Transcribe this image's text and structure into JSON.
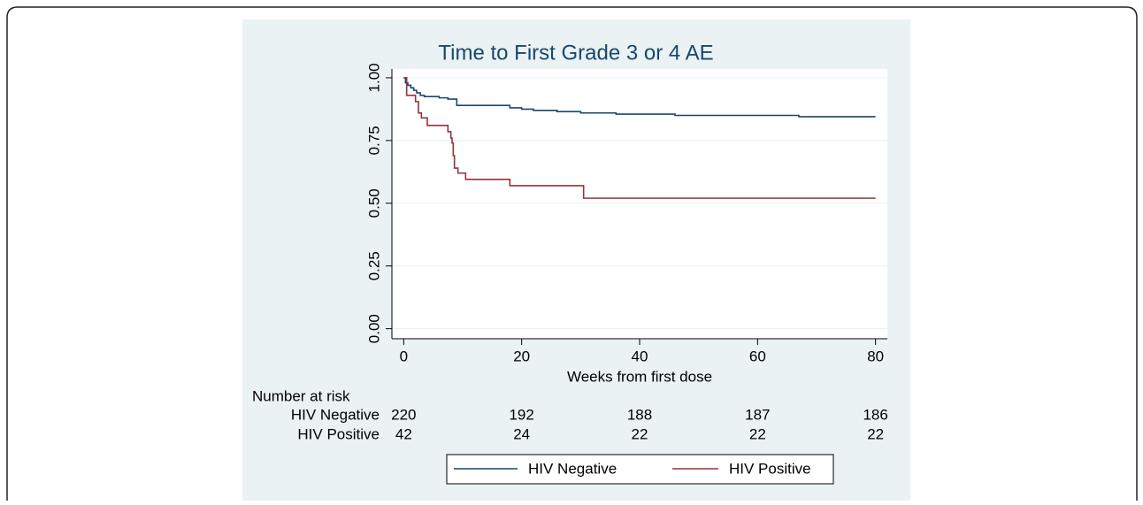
{
  "chart_data": {
    "type": "line",
    "step": "post",
    "title": "Time to First Grade 3 or 4 AE",
    "x_label": "Weeks from first dose",
    "xlim": [
      -2,
      82
    ],
    "xticks": [
      0,
      20,
      40,
      60,
      80
    ],
    "ylim": [
      -0.04,
      1.035
    ],
    "yticks": [
      {
        "value": 0,
        "label": "0.00"
      },
      {
        "value": 0.25,
        "label": "0.25"
      },
      {
        "value": 0.5,
        "label": "0.50"
      },
      {
        "value": 0.75,
        "label": "0.75"
      },
      {
        "value": 1,
        "label": "1.00"
      }
    ],
    "grid": true,
    "legend_position": "bottom",
    "series": [
      {
        "name": "HIV Negative",
        "color": "#1a476f",
        "x": [
          0,
          0.3,
          0.7,
          1.2,
          1.7,
          2.2,
          2.8,
          3.5,
          6,
          7.5,
          9,
          18,
          20,
          22,
          26,
          30,
          36,
          46,
          67,
          80
        ],
        "values": [
          1.0,
          0.98,
          0.97,
          0.96,
          0.95,
          0.94,
          0.93,
          0.925,
          0.92,
          0.915,
          0.89,
          0.88,
          0.875,
          0.87,
          0.865,
          0.86,
          0.855,
          0.85,
          0.845,
          0.845
        ]
      },
      {
        "name": "HIV Positive",
        "color": "#90353b",
        "x": [
          0,
          0.5,
          2,
          2.5,
          3,
          4,
          7.5,
          8,
          8.2,
          8.4,
          8.6,
          9.2,
          10.5,
          18,
          30.5,
          80
        ],
        "values": [
          1.0,
          0.93,
          0.905,
          0.86,
          0.84,
          0.81,
          0.785,
          0.76,
          0.74,
          0.69,
          0.64,
          0.62,
          0.595,
          0.57,
          0.52,
          0.52
        ]
      }
    ],
    "risk_table": {
      "title": "Number at risk",
      "rows": [
        {
          "label": "HIV Negative",
          "values": [
            220,
            192,
            188,
            187,
            186
          ]
        },
        {
          "label": "HIV Positive",
          "values": [
            42,
            24,
            22,
            22,
            22
          ]
        }
      ]
    }
  }
}
